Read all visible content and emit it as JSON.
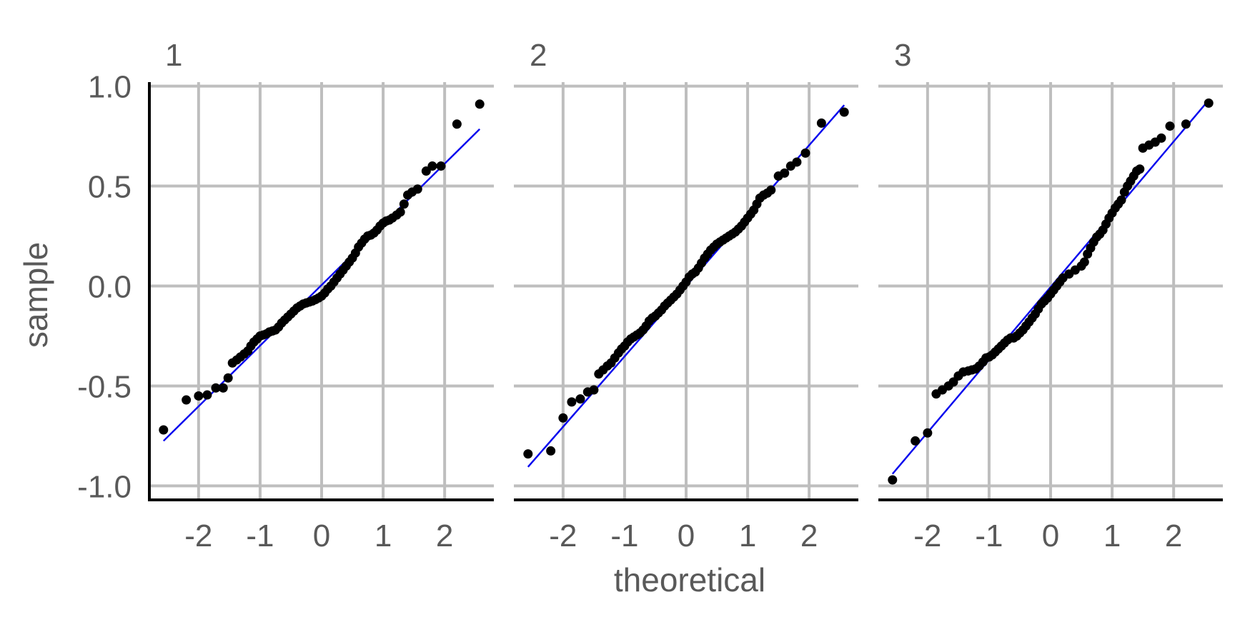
{
  "chart_data": {
    "type": "scatter",
    "xlabel": "theoretical",
    "ylabel": "sample",
    "xlim": [
      -2.8,
      2.8
    ],
    "ylim": [
      -1.07,
      1.02
    ],
    "x_ticks": [
      -2,
      -1,
      0,
      1,
      2
    ],
    "x_tick_labels": [
      "-2",
      "-1",
      "0",
      "1",
      "2"
    ],
    "y_ticks": [
      -1.0,
      -0.5,
      0.0,
      0.5,
      1.0
    ],
    "y_tick_labels": [
      "-1.0",
      "-0.5",
      "0.0",
      "0.5",
      "1.0"
    ],
    "grid": true,
    "point_color": "#000000",
    "line_color": "#0000ee",
    "panels": [
      {
        "label": "1",
        "line": {
          "x": [
            -2.57,
            2.57
          ],
          "y": [
            -0.775,
            0.785
          ]
        },
        "points": [
          [
            -2.57,
            -0.72
          ],
          [
            -2.2,
            -0.57
          ],
          [
            -2.0,
            -0.55
          ],
          [
            -1.86,
            -0.545
          ],
          [
            -1.72,
            -0.51
          ],
          [
            -1.6,
            -0.51
          ],
          [
            -1.52,
            -0.46
          ],
          [
            -1.45,
            -0.385
          ],
          [
            -1.38,
            -0.37
          ],
          [
            -1.32,
            -0.355
          ],
          [
            -1.26,
            -0.34
          ],
          [
            -1.2,
            -0.325
          ],
          [
            -1.15,
            -0.3
          ],
          [
            -1.1,
            -0.28
          ],
          [
            -1.05,
            -0.265
          ],
          [
            -1.0,
            -0.25
          ],
          [
            -0.95,
            -0.245
          ],
          [
            -0.9,
            -0.24
          ],
          [
            -0.85,
            -0.23
          ],
          [
            -0.8,
            -0.225
          ],
          [
            -0.75,
            -0.22
          ],
          [
            -0.7,
            -0.205
          ],
          [
            -0.65,
            -0.185
          ],
          [
            -0.6,
            -0.17
          ],
          [
            -0.55,
            -0.155
          ],
          [
            -0.5,
            -0.14
          ],
          [
            -0.45,
            -0.125
          ],
          [
            -0.4,
            -0.11
          ],
          [
            -0.35,
            -0.1
          ],
          [
            -0.3,
            -0.09
          ],
          [
            -0.25,
            -0.085
          ],
          [
            -0.2,
            -0.08
          ],
          [
            -0.15,
            -0.075
          ],
          [
            -0.1,
            -0.068
          ],
          [
            -0.05,
            -0.06
          ],
          [
            0.0,
            -0.05
          ],
          [
            0.05,
            -0.035
          ],
          [
            0.1,
            -0.015
          ],
          [
            0.15,
            0.0
          ],
          [
            0.2,
            0.02
          ],
          [
            0.25,
            0.04
          ],
          [
            0.3,
            0.06
          ],
          [
            0.35,
            0.08
          ],
          [
            0.4,
            0.1
          ],
          [
            0.45,
            0.12
          ],
          [
            0.5,
            0.14
          ],
          [
            0.55,
            0.165
          ],
          [
            0.6,
            0.195
          ],
          [
            0.65,
            0.215
          ],
          [
            0.7,
            0.235
          ],
          [
            0.75,
            0.25
          ],
          [
            0.8,
            0.255
          ],
          [
            0.85,
            0.265
          ],
          [
            0.9,
            0.28
          ],
          [
            0.95,
            0.3
          ],
          [
            1.0,
            0.315
          ],
          [
            1.05,
            0.325
          ],
          [
            1.1,
            0.33
          ],
          [
            1.15,
            0.34
          ],
          [
            1.22,
            0.355
          ],
          [
            1.28,
            0.37
          ],
          [
            1.34,
            0.41
          ],
          [
            1.4,
            0.455
          ],
          [
            1.47,
            0.47
          ],
          [
            1.56,
            0.485
          ],
          [
            1.7,
            0.575
          ],
          [
            1.8,
            0.6
          ],
          [
            1.94,
            0.6
          ],
          [
            2.2,
            0.81
          ],
          [
            2.57,
            0.91
          ]
        ]
      },
      {
        "label": "2",
        "line": {
          "x": [
            -2.57,
            2.57
          ],
          "y": [
            -0.905,
            0.905
          ]
        },
        "points": [
          [
            -2.57,
            -0.84
          ],
          [
            -2.2,
            -0.825
          ],
          [
            -2.0,
            -0.66
          ],
          [
            -1.86,
            -0.58
          ],
          [
            -1.72,
            -0.565
          ],
          [
            -1.6,
            -0.53
          ],
          [
            -1.5,
            -0.52
          ],
          [
            -1.42,
            -0.44
          ],
          [
            -1.35,
            -0.42
          ],
          [
            -1.28,
            -0.4
          ],
          [
            -1.22,
            -0.385
          ],
          [
            -1.16,
            -0.36
          ],
          [
            -1.1,
            -0.335
          ],
          [
            -1.05,
            -0.315
          ],
          [
            -1.0,
            -0.3
          ],
          [
            -0.95,
            -0.28
          ],
          [
            -0.9,
            -0.265
          ],
          [
            -0.85,
            -0.255
          ],
          [
            -0.8,
            -0.245
          ],
          [
            -0.75,
            -0.235
          ],
          [
            -0.7,
            -0.22
          ],
          [
            -0.65,
            -0.2
          ],
          [
            -0.6,
            -0.175
          ],
          [
            -0.55,
            -0.16
          ],
          [
            -0.5,
            -0.15
          ],
          [
            -0.45,
            -0.135
          ],
          [
            -0.4,
            -0.12
          ],
          [
            -0.35,
            -0.1
          ],
          [
            -0.3,
            -0.085
          ],
          [
            -0.25,
            -0.07
          ],
          [
            -0.2,
            -0.055
          ],
          [
            -0.15,
            -0.04
          ],
          [
            -0.1,
            -0.02
          ],
          [
            -0.05,
            0.0
          ],
          [
            0.0,
            0.02
          ],
          [
            0.05,
            0.045
          ],
          [
            0.1,
            0.06
          ],
          [
            0.15,
            0.07
          ],
          [
            0.2,
            0.09
          ],
          [
            0.25,
            0.115
          ],
          [
            0.3,
            0.14
          ],
          [
            0.35,
            0.16
          ],
          [
            0.4,
            0.18
          ],
          [
            0.45,
            0.195
          ],
          [
            0.5,
            0.21
          ],
          [
            0.55,
            0.22
          ],
          [
            0.6,
            0.23
          ],
          [
            0.65,
            0.24
          ],
          [
            0.7,
            0.25
          ],
          [
            0.75,
            0.26
          ],
          [
            0.8,
            0.27
          ],
          [
            0.85,
            0.285
          ],
          [
            0.9,
            0.3
          ],
          [
            0.95,
            0.32
          ],
          [
            1.0,
            0.34
          ],
          [
            1.05,
            0.36
          ],
          [
            1.1,
            0.38
          ],
          [
            1.15,
            0.41
          ],
          [
            1.2,
            0.44
          ],
          [
            1.26,
            0.455
          ],
          [
            1.32,
            0.465
          ],
          [
            1.38,
            0.48
          ],
          [
            1.5,
            0.55
          ],
          [
            1.6,
            0.565
          ],
          [
            1.7,
            0.6
          ],
          [
            1.8,
            0.62
          ],
          [
            1.94,
            0.665
          ],
          [
            2.2,
            0.815
          ],
          [
            2.57,
            0.87
          ]
        ]
      },
      {
        "label": "3",
        "line": {
          "x": [
            -2.57,
            2.57
          ],
          "y": [
            -0.94,
            0.93
          ]
        },
        "points": [
          [
            -2.57,
            -0.97
          ],
          [
            -2.2,
            -0.775
          ],
          [
            -2.0,
            -0.735
          ],
          [
            -1.86,
            -0.54
          ],
          [
            -1.76,
            -0.52
          ],
          [
            -1.66,
            -0.5
          ],
          [
            -1.58,
            -0.48
          ],
          [
            -1.5,
            -0.45
          ],
          [
            -1.42,
            -0.43
          ],
          [
            -1.34,
            -0.425
          ],
          [
            -1.28,
            -0.42
          ],
          [
            -1.22,
            -0.415
          ],
          [
            -1.16,
            -0.4
          ],
          [
            -1.1,
            -0.38
          ],
          [
            -1.05,
            -0.36
          ],
          [
            -1.0,
            -0.355
          ],
          [
            -0.95,
            -0.345
          ],
          [
            -0.9,
            -0.33
          ],
          [
            -0.85,
            -0.315
          ],
          [
            -0.8,
            -0.3
          ],
          [
            -0.75,
            -0.285
          ],
          [
            -0.7,
            -0.27
          ],
          [
            -0.65,
            -0.26
          ],
          [
            -0.6,
            -0.26
          ],
          [
            -0.55,
            -0.25
          ],
          [
            -0.5,
            -0.235
          ],
          [
            -0.45,
            -0.22
          ],
          [
            -0.4,
            -0.2
          ],
          [
            -0.35,
            -0.18
          ],
          [
            -0.3,
            -0.16
          ],
          [
            -0.25,
            -0.14
          ],
          [
            -0.2,
            -0.115
          ],
          [
            -0.15,
            -0.09
          ],
          [
            -0.1,
            -0.075
          ],
          [
            -0.05,
            -0.06
          ],
          [
            0.0,
            -0.04
          ],
          [
            0.05,
            -0.02
          ],
          [
            0.1,
            0.0
          ],
          [
            0.15,
            0.02
          ],
          [
            0.2,
            0.04
          ],
          [
            0.3,
            0.06
          ],
          [
            0.4,
            0.08
          ],
          [
            0.5,
            0.1
          ],
          [
            0.55,
            0.12
          ],
          [
            0.6,
            0.16
          ],
          [
            0.65,
            0.19
          ],
          [
            0.7,
            0.22
          ],
          [
            0.75,
            0.245
          ],
          [
            0.8,
            0.26
          ],
          [
            0.85,
            0.28
          ],
          [
            0.9,
            0.31
          ],
          [
            0.95,
            0.34
          ],
          [
            1.0,
            0.365
          ],
          [
            1.05,
            0.39
          ],
          [
            1.1,
            0.41
          ],
          [
            1.15,
            0.43
          ],
          [
            1.2,
            0.47
          ],
          [
            1.25,
            0.5
          ],
          [
            1.3,
            0.525
          ],
          [
            1.35,
            0.55
          ],
          [
            1.4,
            0.575
          ],
          [
            1.45,
            0.585
          ],
          [
            1.5,
            0.69
          ],
          [
            1.6,
            0.705
          ],
          [
            1.7,
            0.72
          ],
          [
            1.8,
            0.74
          ],
          [
            1.94,
            0.8
          ],
          [
            2.2,
            0.81
          ],
          [
            2.57,
            0.915
          ]
        ]
      }
    ]
  }
}
